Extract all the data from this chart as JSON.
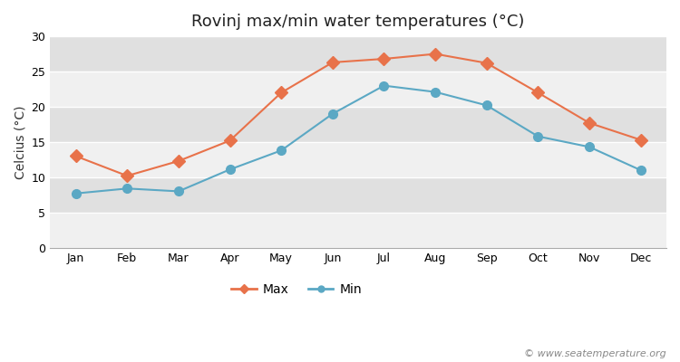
{
  "title": "Rovinj max/min water temperatures (°C)",
  "xlabel": "",
  "ylabel": "Celcius (°C)",
  "months": [
    "Jan",
    "Feb",
    "Mar",
    "Apr",
    "May",
    "Jun",
    "Jul",
    "Aug",
    "Sep",
    "Oct",
    "Nov",
    "Dec"
  ],
  "max_temps": [
    13.0,
    10.2,
    12.3,
    15.2,
    22.0,
    26.3,
    26.8,
    27.5,
    26.2,
    22.0,
    17.7,
    15.3
  ],
  "min_temps": [
    7.7,
    8.4,
    8.0,
    11.1,
    13.8,
    19.0,
    23.0,
    22.1,
    20.2,
    15.8,
    14.3,
    11.0
  ],
  "max_color": "#E8724A",
  "min_color": "#5BA8C4",
  "fig_bg_color": "#ffffff",
  "plot_bg_color": "#e8e8e8",
  "band_color_light": "#f0f0f0",
  "band_color_dark": "#e0e0e0",
  "grid_color": "#ffffff",
  "ylim": [
    0,
    30
  ],
  "yticks": [
    0,
    5,
    10,
    15,
    20,
    25,
    30
  ],
  "legend_labels": [
    "Max",
    "Min"
  ],
  "watermark": "© www.seatemperature.org",
  "title_fontsize": 13,
  "label_fontsize": 10,
  "tick_fontsize": 9,
  "watermark_fontsize": 8
}
